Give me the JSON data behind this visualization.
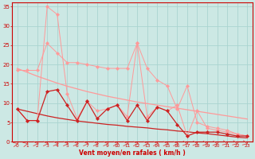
{
  "xlabel": "Vent moyen/en rafales ( km/h )",
  "background_color": "#cce8e4",
  "grid_color": "#aad4d0",
  "x_data": [
    0,
    1,
    2,
    3,
    4,
    5,
    6,
    7,
    8,
    9,
    10,
    11,
    12,
    13,
    14,
    15,
    16,
    17,
    18,
    19,
    20,
    21,
    22,
    23
  ],
  "line_pink_jagged": [
    18.5,
    18.5,
    18.5,
    25.5,
    23.0,
    20.5,
    20.5,
    20.0,
    19.5,
    19.0,
    19.0,
    19.0,
    25.5,
    19.0,
    16.0,
    14.5,
    8.5,
    14.5,
    5.0,
    4.0,
    3.5,
    3.0,
    2.0,
    1.5
  ],
  "line_pink_high": [
    8.5,
    5.5,
    5.5,
    35.0,
    33.0,
    12.5,
    6.0,
    10.5,
    8.0,
    8.5,
    9.5,
    6.5,
    25.5,
    6.5,
    9.0,
    8.0,
    9.5,
    1.5,
    8.0,
    3.5,
    3.0,
    2.5,
    2.0,
    1.5
  ],
  "line_dark_jagged": [
    8.5,
    5.5,
    5.5,
    13.0,
    13.5,
    9.5,
    5.5,
    10.5,
    6.0,
    8.5,
    9.5,
    5.5,
    9.5,
    5.5,
    9.0,
    8.0,
    4.5,
    1.5,
    2.5,
    2.5,
    2.5,
    2.0,
    1.5,
    1.5
  ],
  "line_dark_trend": [
    8.5,
    7.9,
    7.3,
    6.7,
    6.2,
    5.8,
    5.4,
    5.1,
    4.8,
    4.5,
    4.3,
    4.0,
    3.8,
    3.6,
    3.3,
    3.1,
    2.8,
    2.6,
    2.3,
    2.1,
    1.8,
    1.5,
    1.2,
    1.0
  ],
  "line_pink_trend": [
    19.0,
    18.0,
    17.0,
    16.1,
    15.2,
    14.4,
    13.7,
    13.0,
    12.4,
    11.8,
    11.3,
    10.8,
    10.3,
    9.9,
    9.5,
    9.1,
    8.7,
    8.3,
    7.9,
    7.5,
    7.1,
    6.7,
    6.3,
    5.9
  ],
  "color_pink": "#ff9999",
  "color_dark_red": "#cc2222",
  "arrow_color": "#dd4444",
  "xlim": [
    -0.5,
    23.5
  ],
  "ylim": [
    0,
    36
  ],
  "yticks": [
    0,
    5,
    10,
    15,
    20,
    25,
    30,
    35
  ],
  "xticks": [
    0,
    1,
    2,
    3,
    4,
    5,
    6,
    7,
    8,
    9,
    10,
    11,
    12,
    13,
    14,
    15,
    16,
    17,
    18,
    19,
    20,
    21,
    22,
    23
  ]
}
